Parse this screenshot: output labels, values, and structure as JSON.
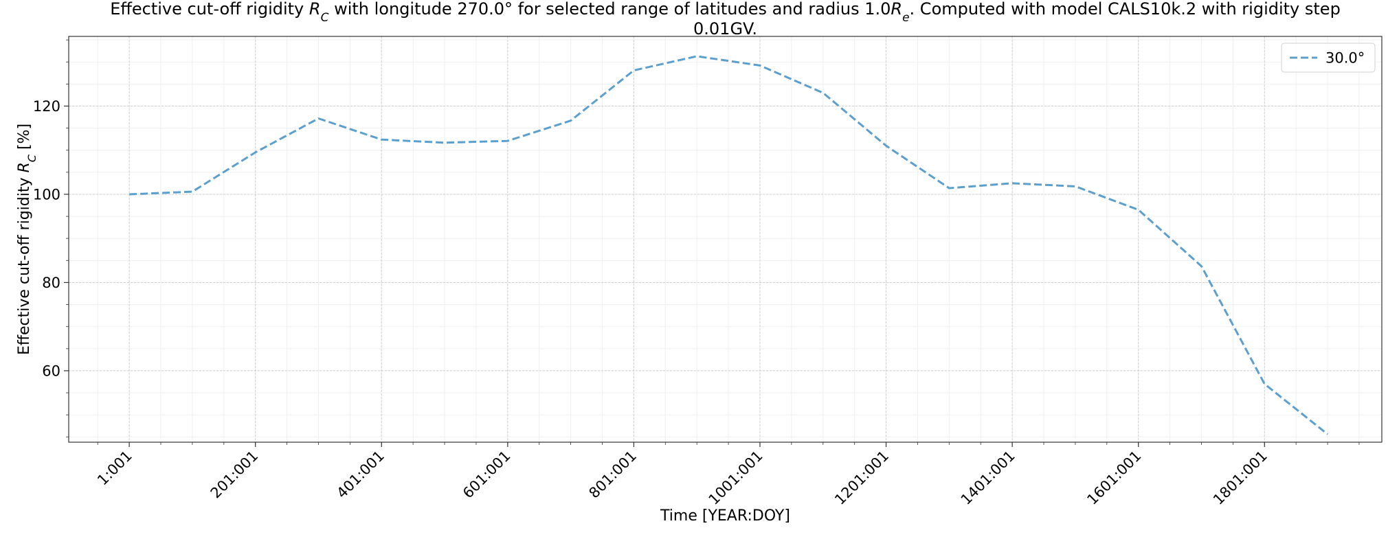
{
  "chart_data": {
    "type": "line",
    "title_lines": [
      "Effective cut-off rigidity R_C with longitude 270.0° for selected range of latitudes and radius 1.0R_e. Computed with model CALS10k.2 with rigidity step",
      "0.01GV."
    ],
    "xlabel": "Time [YEAR:DOY]",
    "ylabel": "Effective cut-off rigidity R_C [%]",
    "x_ticks": [
      "1:001",
      "201:001",
      "401:001",
      "601:001",
      "801:001",
      "1001:001",
      "1201:001",
      "1401:001",
      "1601:001",
      "1801:001"
    ],
    "x_tick_values": [
      1,
      201,
      401,
      601,
      801,
      1001,
      1201,
      1401,
      1601,
      1801
    ],
    "y_ticks": [
      60,
      80,
      100,
      120
    ],
    "xlim": [
      -95,
      1987
    ],
    "ylim": [
      43.8,
      135.8
    ],
    "grid": true,
    "legend_position": "top-right",
    "series": [
      {
        "name": "30.0°",
        "style": "dashed",
        "color": "#5b9fce",
        "x": [
          1,
          101,
          201,
          301,
          401,
          501,
          601,
          701,
          801,
          901,
          1001,
          1101,
          1201,
          1301,
          1401,
          1501,
          1601,
          1701,
          1801,
          1901
        ],
        "y": [
          100.0,
          100.6,
          109.5,
          117.2,
          112.4,
          111.7,
          112.1,
          116.7,
          128.1,
          131.3,
          129.2,
          123.0,
          111.0,
          101.4,
          102.5,
          101.8,
          96.5,
          83.7,
          57.0,
          45.6
        ]
      }
    ]
  }
}
